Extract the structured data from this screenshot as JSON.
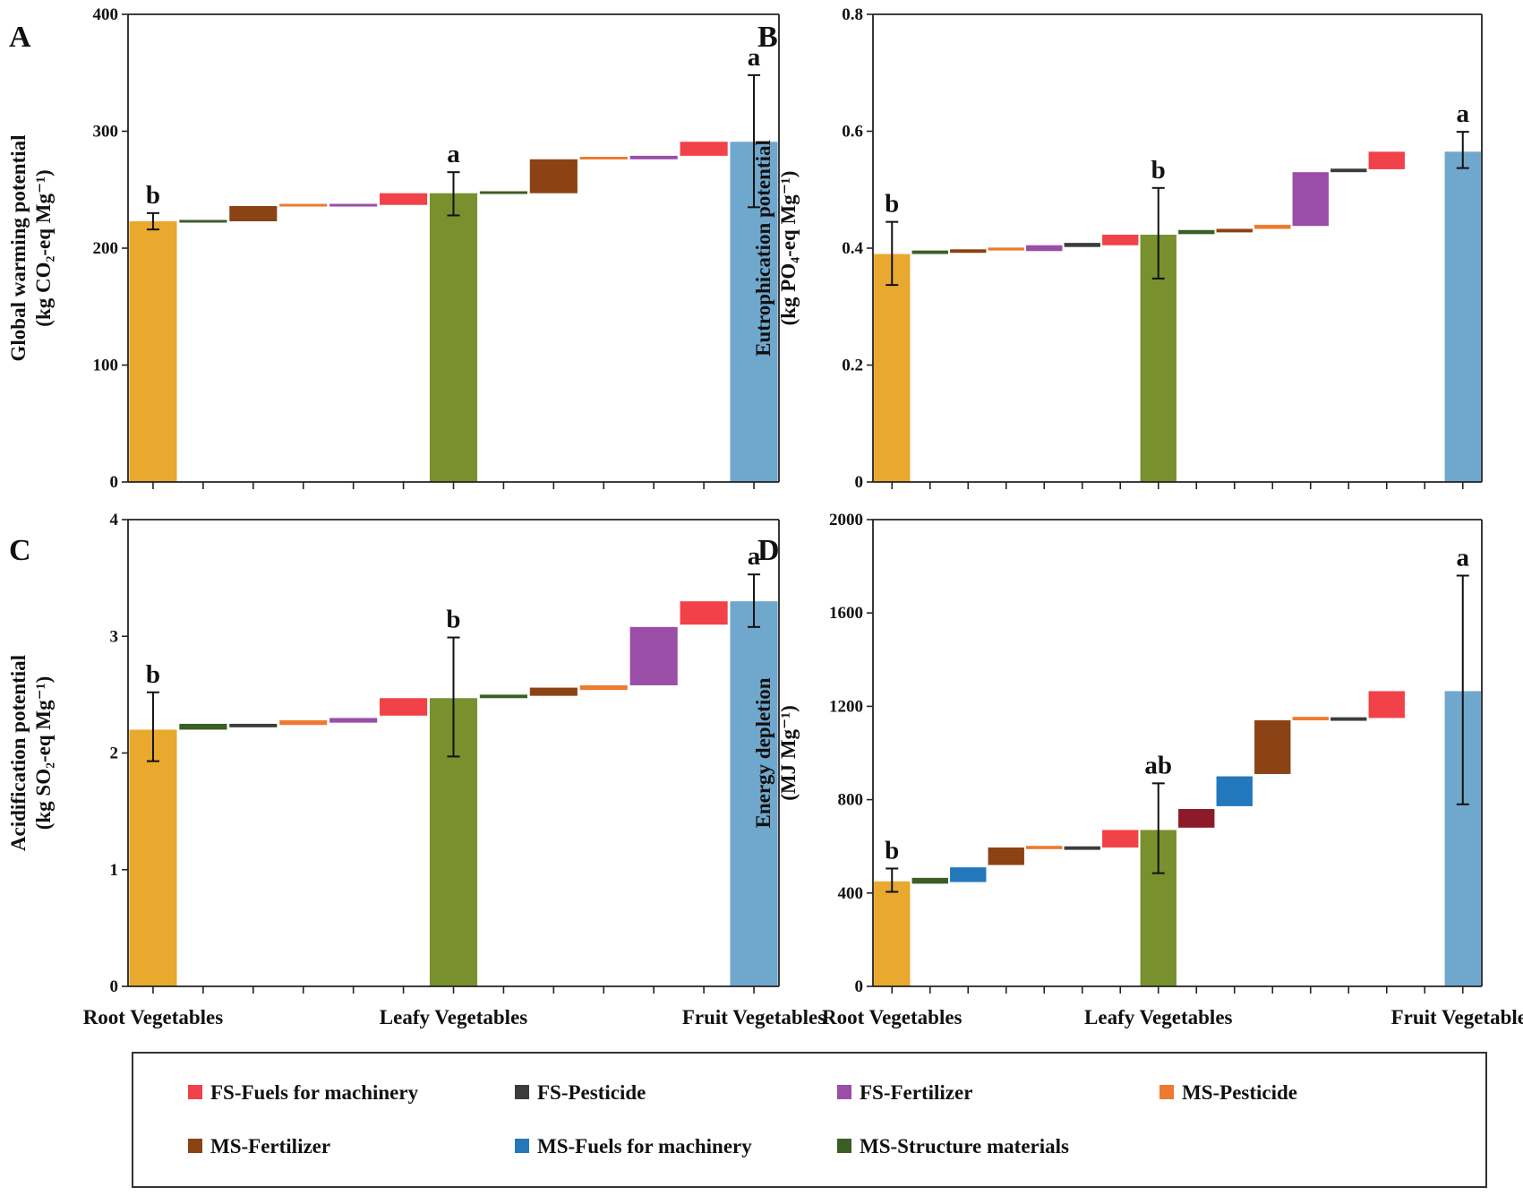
{
  "categories": [
    "Root Vegetables",
    "Leafy Vegetables",
    "Fruit Vegetables"
  ],
  "colors": {
    "root": "#E8A92E",
    "leafy": "#78902D",
    "fruit": "#70A7CD",
    "FS_fuel": "#F04248",
    "FS_pest": "#3C3C3C",
    "FS_fert": "#9A4EA8",
    "MS_pest": "#EE7A30",
    "MS_fert": "#8B4214",
    "MS_fuel": "#2378BC",
    "MS_struct": "#3B5E27",
    "D_extra": "#8C1B2A"
  },
  "legend": [
    {
      "key": "FS_fuel",
      "label": "FS-Fuels for machinery"
    },
    {
      "key": "FS_pest",
      "label": "FS-Pesticide"
    },
    {
      "key": "FS_fert",
      "label": "FS-Fertilizer"
    },
    {
      "key": "MS_pest",
      "label": "MS-Pesticide"
    },
    {
      "key": "MS_fert",
      "label": "MS-Fertilizer"
    },
    {
      "key": "MS_fuel",
      "label": "MS-Fuels for machinery"
    },
    {
      "key": "MS_struct",
      "label": "MS-Structure materials"
    }
  ],
  "chart_data": [
    {
      "type": "bar",
      "panel": "A",
      "ylabel_line1": "Global warming potential",
      "ylabel_line2": "(kg CO₂-eq Mg⁻¹)",
      "ylim": [
        0,
        400
      ],
      "yticks": [
        0,
        100,
        200,
        300,
        400
      ],
      "totals": [
        {
          "category": "Root Vegetables",
          "value": 223,
          "err_low": 216,
          "err_high": 230,
          "sig": "b"
        },
        {
          "category": "Leafy Vegetables",
          "value": 247,
          "err_low": 228,
          "err_high": 265,
          "sig": "a"
        },
        {
          "category": "Fruit Vegetables",
          "value": 291,
          "err_low": 235,
          "err_high": 348,
          "sig": "a"
        }
      ],
      "steps": [
        {
          "from": 222,
          "to": 224,
          "color": "MS_struct"
        },
        {
          "from": 223,
          "to": 236,
          "color": "MS_fert"
        },
        {
          "from": 236,
          "to": 237.5,
          "color": "MS_pest"
        },
        {
          "from": 236,
          "to": 237.5,
          "color": "FS_fert"
        },
        {
          "from": 237,
          "to": 247,
          "color": "FS_fuel"
        },
        {
          "from": 247,
          "to": 248,
          "color": "MS_struct"
        },
        {
          "from": 247,
          "to": 276,
          "color": "MS_fert"
        },
        {
          "from": 276,
          "to": 278,
          "color": "MS_pest"
        },
        {
          "from": 276,
          "to": 279,
          "color": "FS_fert"
        },
        {
          "from": 279,
          "to": 291,
          "color": "FS_fuel"
        }
      ]
    },
    {
      "type": "bar",
      "panel": "B",
      "ylabel_line1": "Eutrophication potential",
      "ylabel_line2": "(kg PO₄-eq Mg⁻¹)",
      "ylim": [
        0,
        0.8
      ],
      "yticks": [
        0,
        0.2,
        0.4,
        0.6,
        0.8
      ],
      "totals": [
        {
          "category": "Root Vegetables",
          "value": 0.39,
          "err_low": 0.337,
          "err_high": 0.445,
          "sig": "b"
        },
        {
          "category": "Leafy Vegetables",
          "value": 0.423,
          "err_low": 0.348,
          "err_high": 0.503,
          "sig": "b"
        },
        {
          "category": "Fruit Vegetables",
          "value": 0.565,
          "err_low": 0.537,
          "err_high": 0.599,
          "sig": "a"
        }
      ],
      "steps": [
        {
          "from": 0.39,
          "to": 0.396,
          "color": "MS_struct"
        },
        {
          "from": 0.392,
          "to": 0.398,
          "color": "MS_fert"
        },
        {
          "from": 0.396,
          "to": 0.401,
          "color": "MS_pest"
        },
        {
          "from": 0.395,
          "to": 0.405,
          "color": "FS_fert"
        },
        {
          "from": 0.402,
          "to": 0.409,
          "color": "FS_pest"
        },
        {
          "from": 0.405,
          "to": 0.423,
          "color": "FS_fuel"
        },
        {
          "from": 0.424,
          "to": 0.431,
          "color": "MS_struct"
        },
        {
          "from": 0.427,
          "to": 0.433,
          "color": "MS_fert"
        },
        {
          "from": 0.433,
          "to": 0.44,
          "color": "MS_pest"
        },
        {
          "from": 0.438,
          "to": 0.53,
          "color": "FS_fert"
        },
        {
          "from": 0.53,
          "to": 0.536,
          "color": "FS_pest"
        },
        {
          "from": 0.535,
          "to": 0.565,
          "color": "FS_fuel"
        }
      ]
    },
    {
      "type": "bar",
      "panel": "C",
      "ylabel_line1": "Acidification potential",
      "ylabel_line2": "(kg SO₂-eq Mg⁻¹)",
      "ylim": [
        0,
        4
      ],
      "yticks": [
        0,
        1,
        2,
        3,
        4
      ],
      "totals": [
        {
          "category": "Root Vegetables",
          "value": 2.2,
          "err_low": 1.93,
          "err_high": 2.52,
          "sig": "b"
        },
        {
          "category": "Leafy Vegetables",
          "value": 2.47,
          "err_low": 1.97,
          "err_high": 2.99,
          "sig": "b"
        },
        {
          "category": "Fruit Vegetables",
          "value": 3.3,
          "err_low": 3.08,
          "err_high": 3.53,
          "sig": "a"
        }
      ],
      "steps": [
        {
          "from": 2.2,
          "to": 2.25,
          "color": "MS_struct"
        },
        {
          "from": 2.22,
          "to": 2.25,
          "color": "FS_pest"
        },
        {
          "from": 2.24,
          "to": 2.28,
          "color": "MS_pest"
        },
        {
          "from": 2.26,
          "to": 2.3,
          "color": "FS_fert"
        },
        {
          "from": 2.32,
          "to": 2.47,
          "color": "FS_fuel"
        },
        {
          "from": 2.47,
          "to": 2.5,
          "color": "MS_struct"
        },
        {
          "from": 2.49,
          "to": 2.56,
          "color": "MS_fert"
        },
        {
          "from": 2.54,
          "to": 2.58,
          "color": "MS_pest"
        },
        {
          "from": 2.58,
          "to": 3.08,
          "color": "FS_fert"
        },
        {
          "from": 3.1,
          "to": 3.3,
          "color": "FS_fuel"
        }
      ]
    },
    {
      "type": "bar",
      "panel": "D",
      "ylabel_line1": "Energy depletion",
      "ylabel_line2": "(MJ Mg⁻¹)",
      "ylim": [
        0,
        2000
      ],
      "yticks": [
        0,
        400,
        800,
        1200,
        1600,
        2000
      ],
      "totals": [
        {
          "category": "Root Vegetables",
          "value": 450,
          "err_low": 405,
          "err_high": 505,
          "sig": "b"
        },
        {
          "category": "Leafy Vegetables",
          "value": 670,
          "err_low": 485,
          "err_high": 870,
          "sig": "ab"
        },
        {
          "category": "Fruit Vegetables",
          "value": 1265,
          "err_low": 780,
          "err_high": 1760,
          "sig": "a"
        }
      ],
      "steps": [
        {
          "from": 440,
          "to": 465,
          "color": "MS_struct"
        },
        {
          "from": 447,
          "to": 510,
          "color": "MS_fuel"
        },
        {
          "from": 520,
          "to": 595,
          "color": "MS_fert"
        },
        {
          "from": 588,
          "to": 602,
          "color": "MS_pest"
        },
        {
          "from": 585,
          "to": 600,
          "color": "FS_pest"
        },
        {
          "from": 595,
          "to": 670,
          "color": "FS_fuel"
        },
        {
          "from": 680,
          "to": 760,
          "color": "D_extra"
        },
        {
          "from": 772,
          "to": 900,
          "color": "MS_fuel"
        },
        {
          "from": 910,
          "to": 1140,
          "color": "MS_fert"
        },
        {
          "from": 1140,
          "to": 1155,
          "color": "MS_pest"
        },
        {
          "from": 1138,
          "to": 1153,
          "color": "FS_pest"
        },
        {
          "from": 1150,
          "to": 1265,
          "color": "FS_fuel"
        }
      ]
    }
  ]
}
